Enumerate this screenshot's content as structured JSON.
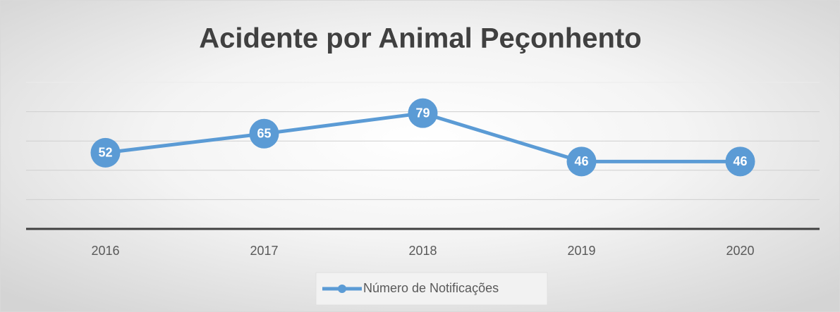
{
  "chart_data": {
    "type": "line",
    "title": "Acidente por Animal Peçonhento",
    "categories": [
      "2016",
      "2017",
      "2018",
      "2019",
      "2020"
    ],
    "series": [
      {
        "name": "Número de Notificações",
        "color": "#5b9bd5",
        "values": [
          52,
          65,
          79,
          46,
          46
        ]
      }
    ],
    "ylim": [
      0,
      100
    ],
    "yticks": [
      0,
      20,
      40,
      60,
      80,
      100
    ],
    "grid": true,
    "legend": "bottom"
  }
}
